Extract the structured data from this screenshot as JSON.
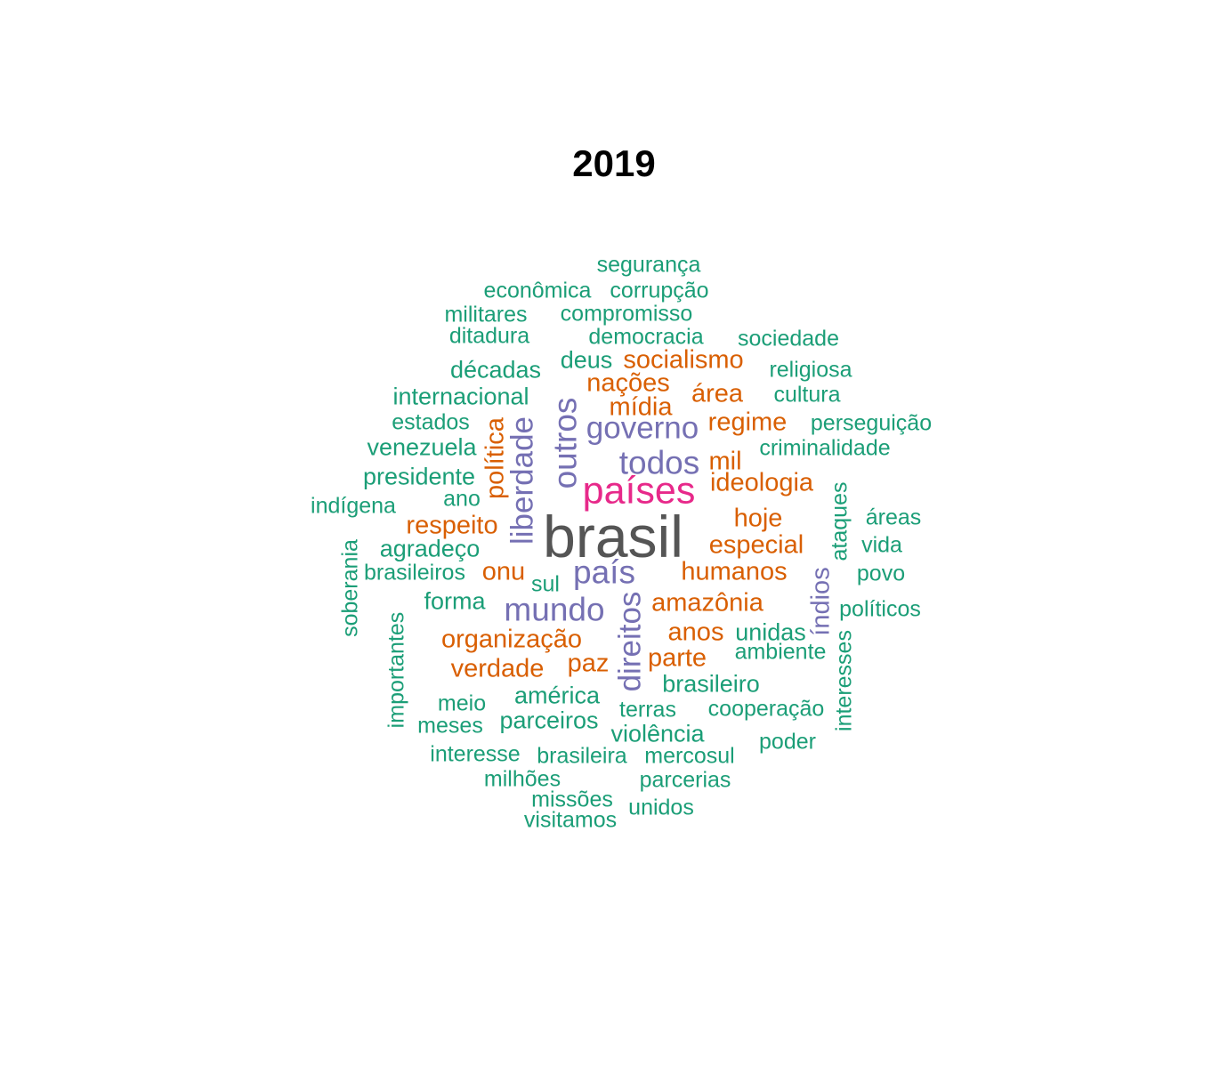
{
  "title": "2019",
  "colors": {
    "green": "#1b9e77",
    "orange": "#d95f02",
    "purple": "#7570b3",
    "magenta": "#e7298a",
    "gray": "#555555"
  },
  "words": [
    {
      "text": "segurança",
      "color": "green"
    },
    {
      "text": "econômica",
      "color": "green"
    },
    {
      "text": "corrupção",
      "color": "green"
    },
    {
      "text": "militares",
      "color": "green"
    },
    {
      "text": "compromisso",
      "color": "green"
    },
    {
      "text": "ditadura",
      "color": "green"
    },
    {
      "text": "democracia",
      "color": "green"
    },
    {
      "text": "sociedade",
      "color": "green"
    },
    {
      "text": "décadas",
      "color": "green"
    },
    {
      "text": "deus",
      "color": "green"
    },
    {
      "text": "socialismo",
      "color": "orange"
    },
    {
      "text": "religiosa",
      "color": "green"
    },
    {
      "text": "nações",
      "color": "orange"
    },
    {
      "text": "internacional",
      "color": "green"
    },
    {
      "text": "área",
      "color": "orange"
    },
    {
      "text": "cultura",
      "color": "green"
    },
    {
      "text": "mídia",
      "color": "orange"
    },
    {
      "text": "estados",
      "color": "green"
    },
    {
      "text": "governo",
      "color": "purple"
    },
    {
      "text": "regime",
      "color": "orange"
    },
    {
      "text": "perseguição",
      "color": "green"
    },
    {
      "text": "venezuela",
      "color": "green"
    },
    {
      "text": "criminalidade",
      "color": "green"
    },
    {
      "text": "todos",
      "color": "purple"
    },
    {
      "text": "mil",
      "color": "orange"
    },
    {
      "text": "presidente",
      "color": "green"
    },
    {
      "text": "ideologia",
      "color": "orange"
    },
    {
      "text": "países",
      "color": "magenta"
    },
    {
      "text": "ano",
      "color": "green"
    },
    {
      "text": "indígena",
      "color": "green"
    },
    {
      "text": "hoje",
      "color": "orange"
    },
    {
      "text": "áreas",
      "color": "green"
    },
    {
      "text": "respeito",
      "color": "orange"
    },
    {
      "text": "brasil",
      "color": "gray"
    },
    {
      "text": "especial",
      "color": "orange"
    },
    {
      "text": "vida",
      "color": "green"
    },
    {
      "text": "agradeço",
      "color": "green"
    },
    {
      "text": "brasileiros",
      "color": "green"
    },
    {
      "text": "onu",
      "color": "orange"
    },
    {
      "text": "país",
      "color": "purple"
    },
    {
      "text": "humanos",
      "color": "orange"
    },
    {
      "text": "povo",
      "color": "green"
    },
    {
      "text": "sul",
      "color": "green"
    },
    {
      "text": "forma",
      "color": "green"
    },
    {
      "text": "amazônia",
      "color": "orange"
    },
    {
      "text": "mundo",
      "color": "purple"
    },
    {
      "text": "políticos",
      "color": "green"
    },
    {
      "text": "anos",
      "color": "orange"
    },
    {
      "text": "unidas",
      "color": "green"
    },
    {
      "text": "organização",
      "color": "orange"
    },
    {
      "text": "ambiente",
      "color": "green"
    },
    {
      "text": "paz",
      "color": "orange"
    },
    {
      "text": "parte",
      "color": "orange"
    },
    {
      "text": "verdade",
      "color": "orange"
    },
    {
      "text": "brasileiro",
      "color": "green"
    },
    {
      "text": "américa",
      "color": "green"
    },
    {
      "text": "meio",
      "color": "green"
    },
    {
      "text": "terras",
      "color": "green"
    },
    {
      "text": "cooperação",
      "color": "green"
    },
    {
      "text": "parceiros",
      "color": "green"
    },
    {
      "text": "meses",
      "color": "green"
    },
    {
      "text": "violência",
      "color": "green"
    },
    {
      "text": "poder",
      "color": "green"
    },
    {
      "text": "interesse",
      "color": "green"
    },
    {
      "text": "brasileira",
      "color": "green"
    },
    {
      "text": "mercosul",
      "color": "green"
    },
    {
      "text": "milhões",
      "color": "green"
    },
    {
      "text": "parcerias",
      "color": "green"
    },
    {
      "text": "missões",
      "color": "green"
    },
    {
      "text": "unidos",
      "color": "green"
    },
    {
      "text": "visitamos",
      "color": "green"
    },
    {
      "text": "outros",
      "color": "purple"
    },
    {
      "text": "liberdade",
      "color": "purple"
    },
    {
      "text": "política",
      "color": "orange"
    },
    {
      "text": "direitos",
      "color": "purple"
    },
    {
      "text": "índios",
      "color": "purple"
    },
    {
      "text": "ataques",
      "color": "green"
    },
    {
      "text": "interesses",
      "color": "green"
    },
    {
      "text": "soberania",
      "color": "green"
    },
    {
      "text": "importantes",
      "color": "green"
    }
  ]
}
